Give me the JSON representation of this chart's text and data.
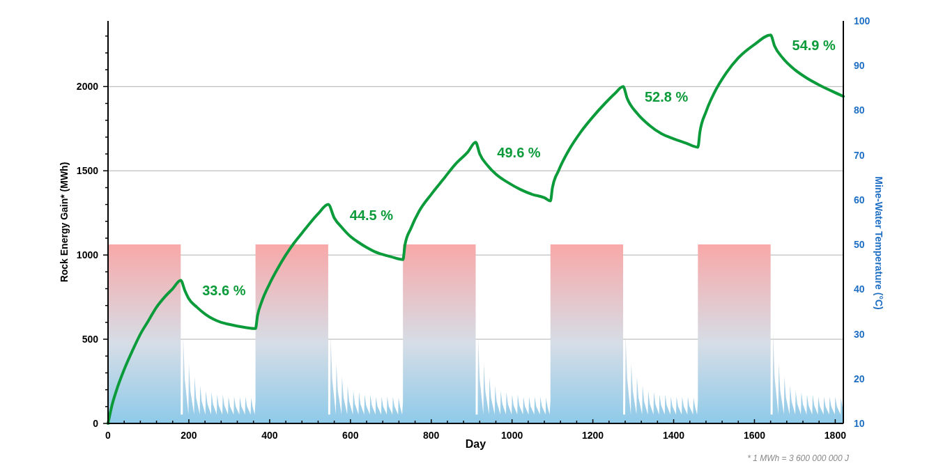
{
  "chart_data": {
    "type": "line",
    "xlabel": "Day",
    "ylabel": "Rock Energy Gain* (MWh)",
    "y2label": "Mine-Water Temperature (°C)",
    "xlim": [
      0,
      1820
    ],
    "ylim": [
      0,
      2390
    ],
    "y2lim": [
      10,
      100
    ],
    "xticks": [
      0,
      {
        "value": 40,
        "label": null
      },
      {
        "value": 80,
        "label": null
      },
      {
        "value": 120,
        "label": null
      },
      {
        "value": 160,
        "label": null
      },
      200,
      {
        "value": 240,
        "label": null
      },
      {
        "value": 280,
        "label": null
      },
      {
        "value": 320,
        "label": null
      },
      {
        "value": 360,
        "label": null
      },
      400,
      {
        "value": 440,
        "label": null
      },
      {
        "value": 480,
        "label": null
      },
      {
        "value": 520,
        "label": null
      },
      {
        "value": 560,
        "label": null
      },
      600,
      {
        "value": 640,
        "label": null
      },
      {
        "value": 680,
        "label": null
      },
      {
        "value": 720,
        "label": null
      },
      {
        "value": 760,
        "label": null
      },
      800,
      {
        "value": 840,
        "label": null
      },
      {
        "value": 880,
        "label": null
      },
      {
        "value": 920,
        "label": null
      },
      {
        "value": 960,
        "label": null
      },
      1000,
      {
        "value": 1040,
        "label": null
      },
      {
        "value": 1080,
        "label": null
      },
      {
        "value": 1120,
        "label": null
      },
      {
        "value": 1160,
        "label": null
      },
      1200,
      {
        "value": 1240,
        "label": null
      },
      {
        "value": 1280,
        "label": null
      },
      {
        "value": 1320,
        "label": null
      },
      {
        "value": 1360,
        "label": null
      },
      1400,
      {
        "value": 1440,
        "label": null
      },
      {
        "value": 1480,
        "label": null
      },
      {
        "value": 1520,
        "label": null
      },
      {
        "value": 1560,
        "label": null
      },
      1600,
      {
        "value": 1640,
        "label": null
      },
      {
        "value": 1680,
        "label": null
      },
      {
        "value": 1720,
        "label": null
      },
      {
        "value": 1760,
        "label": null
      },
      1800
    ],
    "yticks": [
      0,
      {
        "value": 100,
        "label": null
      },
      {
        "value": 200,
        "label": null
      },
      {
        "value": 300,
        "label": null
      },
      {
        "value": 400,
        "label": null
      },
      500,
      {
        "value": 600,
        "label": null
      },
      {
        "value": 700,
        "label": null
      },
      {
        "value": 800,
        "label": null
      },
      {
        "value": 900,
        "label": null
      },
      1000,
      {
        "value": 1100,
        "label": null
      },
      {
        "value": 1200,
        "label": null
      },
      {
        "value": 1300,
        "label": null
      },
      {
        "value": 1400,
        "label": null
      },
      1500,
      {
        "value": 1600,
        "label": null
      },
      {
        "value": 1700,
        "label": null
      },
      {
        "value": 1800,
        "label": null
      },
      {
        "value": 1900,
        "label": null
      },
      2000,
      {
        "value": 2100,
        "label": null
      },
      {
        "value": 2200,
        "label": null
      },
      {
        "value": 2300,
        "label": null
      }
    ],
    "y2ticks": [
      10,
      20,
      30,
      40,
      50,
      60,
      70,
      80,
      90,
      100
    ],
    "grid": "y",
    "series": [
      {
        "type": "area",
        "axis": "y2",
        "color": "#8ecae9",
        "x": [
          0,
          180,
          180,
          185,
          186,
          190,
          199,
          200,
          204,
          213,
          214,
          218,
          227,
          228,
          232,
          241,
          242,
          246,
          255,
          256,
          260,
          269,
          270,
          274,
          283,
          284,
          288,
          297,
          298,
          302,
          311,
          312,
          316,
          325,
          326,
          330,
          339,
          340,
          344,
          353,
          354,
          358,
          363,
          365,
          365,
          545,
          545,
          550,
          551,
          555,
          564,
          565,
          569,
          578,
          579,
          583,
          592,
          593,
          597,
          606,
          607,
          611,
          620,
          621,
          625,
          634,
          635,
          639,
          648,
          649,
          653,
          662,
          663,
          667,
          676,
          677,
          681,
          690,
          691,
          695,
          704,
          705,
          709,
          718,
          719,
          723,
          728,
          730,
          730,
          910,
          910,
          915,
          916,
          920,
          929,
          930,
          934,
          943,
          944,
          948,
          957,
          958,
          962,
          971,
          972,
          976,
          985,
          986,
          990,
          999,
          1000,
          1004,
          1013,
          1014,
          1018,
          1027,
          1028,
          1032,
          1041,
          1042,
          1046,
          1055,
          1056,
          1060,
          1069,
          1070,
          1074,
          1083,
          1084,
          1088,
          1093,
          1095,
          1095,
          1275,
          1275,
          1280,
          1281,
          1285,
          1294,
          1295,
          1299,
          1308,
          1309,
          1313,
          1322,
          1323,
          1327,
          1336,
          1337,
          1341,
          1350,
          1351,
          1355,
          1364,
          1365,
          1369,
          1378,
          1379,
          1383,
          1392,
          1393,
          1397,
          1406,
          1407,
          1411,
          1420,
          1421,
          1425,
          1434,
          1435,
          1439,
          1448,
          1449,
          1453,
          1458,
          1460,
          1460,
          1640,
          1640,
          1645,
          1646,
          1650,
          1659,
          1660,
          1664,
          1673,
          1674,
          1678,
          1687,
          1688,
          1692,
          1701,
          1702,
          1706,
          1715,
          1716,
          1720,
          1729,
          1730,
          1734,
          1743,
          1744,
          1748,
          1757,
          1758,
          1762,
          1771,
          1772,
          1776,
          1785,
          1786,
          1790,
          1799,
          1800,
          1804,
          1813,
          1814,
          1818,
          1820
        ],
        "values": [
          50,
          50,
          12,
          12,
          29.5,
          19.9,
          12,
          23.5,
          17.2,
          12,
          20.5,
          15.8,
          12,
          18.5,
          14.9,
          12,
          17.3,
          14.4,
          12,
          17,
          14.3,
          12,
          16.5,
          14,
          12,
          16.5,
          14,
          12,
          16,
          13.8,
          12,
          16,
          13.8,
          12,
          16,
          13.8,
          12,
          16,
          13.8,
          12,
          15.8,
          13.7,
          12,
          15,
          50,
          50,
          12,
          12,
          29.5,
          19.9,
          12,
          23.5,
          17.2,
          12,
          20.5,
          15.8,
          12,
          18.5,
          14.9,
          12,
          17.3,
          14.4,
          12,
          17,
          14.3,
          12,
          16.5,
          14,
          12,
          16.5,
          14,
          12,
          16,
          13.8,
          12,
          16,
          13.8,
          12,
          16,
          13.8,
          12,
          16,
          13.8,
          12,
          15.8,
          13.7,
          12,
          15,
          50,
          50,
          12,
          12,
          29.5,
          19.9,
          12,
          23.5,
          17.2,
          12,
          20.5,
          15.8,
          12,
          18.5,
          14.9,
          12,
          17.3,
          14.4,
          12,
          17,
          14.3,
          12,
          16.5,
          14,
          12,
          16.5,
          14,
          12,
          16,
          13.8,
          12,
          16,
          13.8,
          12,
          16,
          13.8,
          12,
          16,
          13.8,
          12,
          15.8,
          13.7,
          12,
          15,
          50,
          50,
          12,
          12,
          30,
          20.1,
          12,
          23.5,
          17.2,
          12,
          20.5,
          15.8,
          12,
          18.5,
          14.9,
          12,
          17.3,
          14.4,
          12,
          17,
          14.3,
          12,
          16.5,
          14,
          12,
          16.5,
          14,
          12,
          16,
          13.8,
          12,
          16,
          13.8,
          12,
          16,
          13.8,
          12,
          16,
          13.8,
          12,
          15.8,
          13.7,
          12,
          15,
          50,
          50,
          12,
          12,
          30.5,
          20.3,
          12,
          23.5,
          17.2,
          12,
          20.5,
          15.8,
          12,
          18.5,
          14.9,
          12,
          17.3,
          14.4,
          12,
          17,
          14.3,
          12,
          16.5,
          14,
          12,
          16.5,
          14,
          12,
          16,
          13.8,
          12,
          16,
          13.8,
          12,
          16,
          13.8,
          12,
          16,
          13.8,
          12,
          15.8,
          13.7,
          13.3
        ]
      },
      {
        "color": "#0c9b3a",
        "x": [
          0,
          10,
          20,
          40,
          60,
          80,
          100,
          120,
          140,
          160,
          180,
          190,
          200,
          220,
          240,
          260,
          280,
          300,
          320,
          340,
          365,
          370,
          380,
          400,
          420,
          440,
          460,
          480,
          500,
          520,
          545,
          560,
          580,
          600,
          620,
          640,
          660,
          680,
          700,
          730,
          735,
          750,
          770,
          800,
          830,
          860,
          890,
          910,
          920,
          940,
          960,
          990,
          1020,
          1050,
          1080,
          1095,
          1100,
          1115,
          1140,
          1170,
          1200,
          1230,
          1255,
          1275,
          1285,
          1310,
          1340,
          1370,
          1400,
          1430,
          1460,
          1465,
          1480,
          1500,
          1530,
          1560,
          1600,
          1640,
          1650,
          1670,
          1700,
          1730,
          1760,
          1790,
          1820
        ],
        "values": [
          0,
          110,
          190,
          320,
          430,
          530,
          610,
          690,
          750,
          800,
          850,
          790,
          740,
          690,
          650,
          620,
          600,
          588,
          578,
          570,
          563,
          640,
          720,
          830,
          920,
          1000,
          1070,
          1130,
          1190,
          1245,
          1300,
          1220,
          1160,
          1110,
          1075,
          1045,
          1020,
          1003,
          990,
          973,
          1060,
          1160,
          1260,
          1360,
          1450,
          1540,
          1610,
          1669,
          1600,
          1530,
          1480,
          1430,
          1390,
          1360,
          1340,
          1321,
          1400,
          1500,
          1620,
          1730,
          1820,
          1900,
          1960,
          2000,
          1930,
          1840,
          1770,
          1720,
          1690,
          1665,
          1640,
          1730,
          1850,
          1960,
          2080,
          2170,
          2250,
          2306,
          2240,
          2170,
          2100,
          2050,
          2010,
          1975,
          1942
        ]
      }
    ],
    "annotations": [
      "33.6 %",
      "44.5 %",
      "49.6 %",
      "52.8 %",
      "54.9 %",
      "* 1 MWh = 3 600 000 000 J"
    ]
  }
}
